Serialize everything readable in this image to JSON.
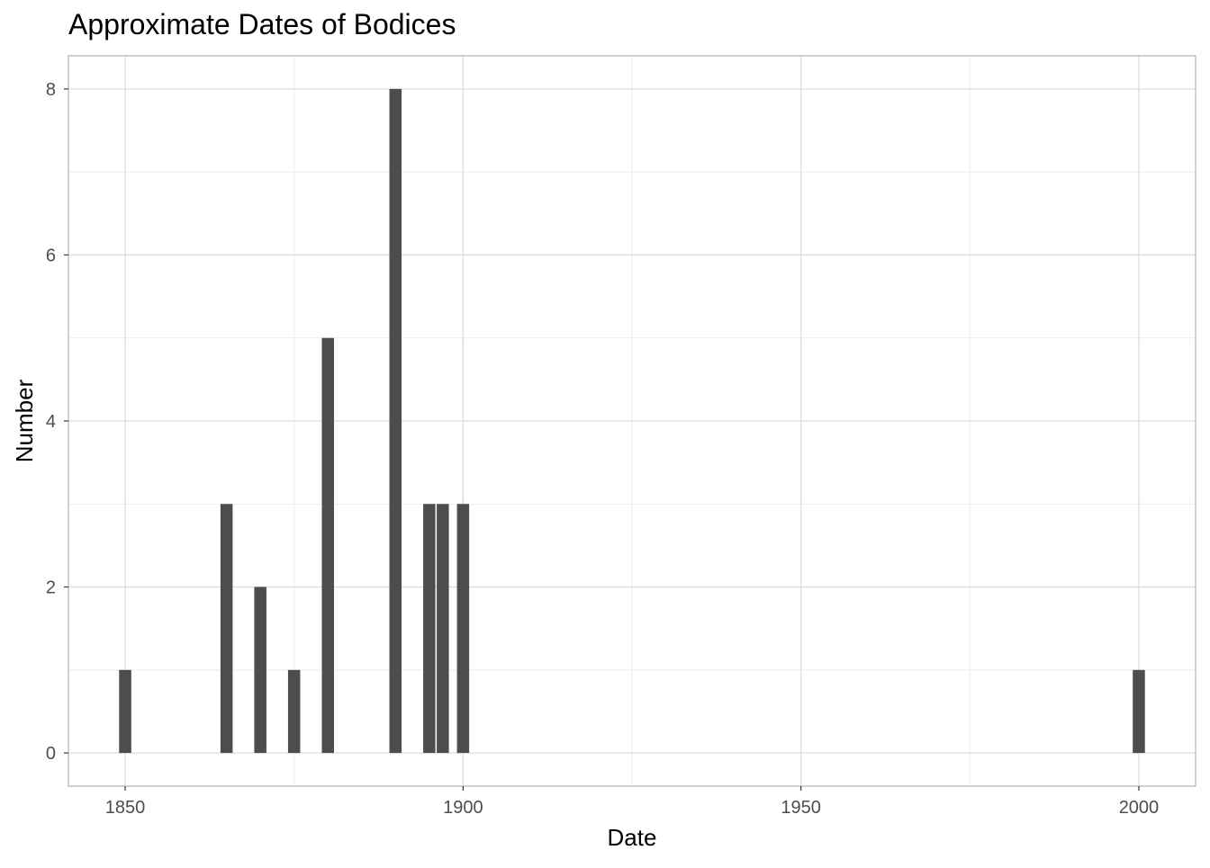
{
  "chart_data": {
    "type": "bar",
    "title": "Approximate Dates of Bodices",
    "xlabel": "Date",
    "ylabel": "Number",
    "x": [
      1850,
      1865,
      1870,
      1875,
      1880,
      1890,
      1895,
      1897,
      1900,
      2000
    ],
    "values": [
      1,
      3,
      2,
      1,
      5,
      8,
      3,
      3,
      3,
      1
    ],
    "xlim": [
      1841.6,
      2008.4
    ],
    "ylim": [
      -0.4,
      8.4
    ],
    "x_ticks": [
      1850,
      1900,
      1950,
      2000
    ],
    "y_ticks": [
      0,
      2,
      4,
      6,
      8
    ],
    "grid": true,
    "legend": "none",
    "colors": {
      "bar": "#4d4d4d",
      "grid_major": "#dcdcdc",
      "grid_minor": "#ececec",
      "panel_border": "#b3b3b3",
      "tick_text": "#4d4d4d",
      "title_text": "#000000"
    }
  }
}
